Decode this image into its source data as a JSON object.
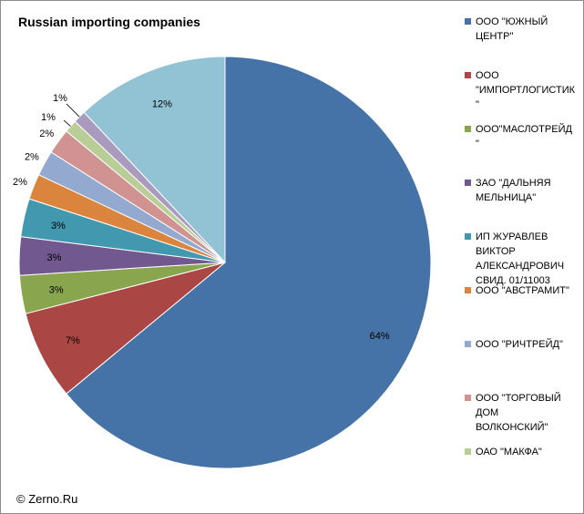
{
  "page": {
    "credit": "© Zerno.Ru"
  },
  "chart_data": {
    "type": "pie",
    "title": "Russian importing companies",
    "categories": [
      "ООО \"ЮЖНЫЙ ЦЕНТР\"",
      "ООО \"ИМПОРТЛОГИСТИК\"",
      "ООО\"МАСЛОТРЕЙД\"",
      "ЗАО \"ДАЛЬНЯЯ МЕЛЬНИЦА\"",
      "ИП ЖУРАВЛЕВ ВИКТОР АЛЕКСАНДРОВИЧ СВИД. 01/11003",
      "ООО \"АВСТРАМИТ\"",
      "ООО \"РИЧТРЕЙД\"",
      "ООО \"ТОРГОВЫЙ ДОМ ВОЛКОНСКИЙ\"",
      "ОАО \"МАКФА\"",
      "",
      ""
    ],
    "legend_lines": [
      "ООО \"ЮЖНЫЙ\nЦЕНТР\"",
      "ООО\n\"ИМПОРТЛОГИСТИК\n\"",
      "ООО\"МАСЛОТРЕЙД\n\"",
      "ЗАО \"ДАЛЬНЯЯ\nМЕЛЬНИЦА\"",
      "ИП ЖУРАВЛЕВ\nВИКТОР\nАЛЕКСАНДРОВИЧ\nСВИД. 01/11003",
      "ООО \"АВСТРАМИТ\"",
      "ООО \"РИЧТРЕЙД\"",
      "ООО \"ТОРГОВЫЙ\nДОМ\nВОЛКОНСКИЙ\"",
      "ОАО \"МАКФА\""
    ],
    "values": [
      64,
      7,
      3,
      3,
      3,
      2,
      2,
      2,
      1,
      1,
      12
    ],
    "labels": [
      "64%",
      "7%",
      "3%",
      "3%",
      "3%",
      "2%",
      "2%",
      "2%",
      "1%",
      "1%",
      "12%"
    ],
    "colors": [
      "#4572a7",
      "#aa4643",
      "#89a54e",
      "#71588f",
      "#4198af",
      "#db843d",
      "#93a9cf",
      "#d19392",
      "#b9cd96",
      "#a99bbd",
      "#92c3d5"
    ],
    "legend_placement": "right"
  }
}
